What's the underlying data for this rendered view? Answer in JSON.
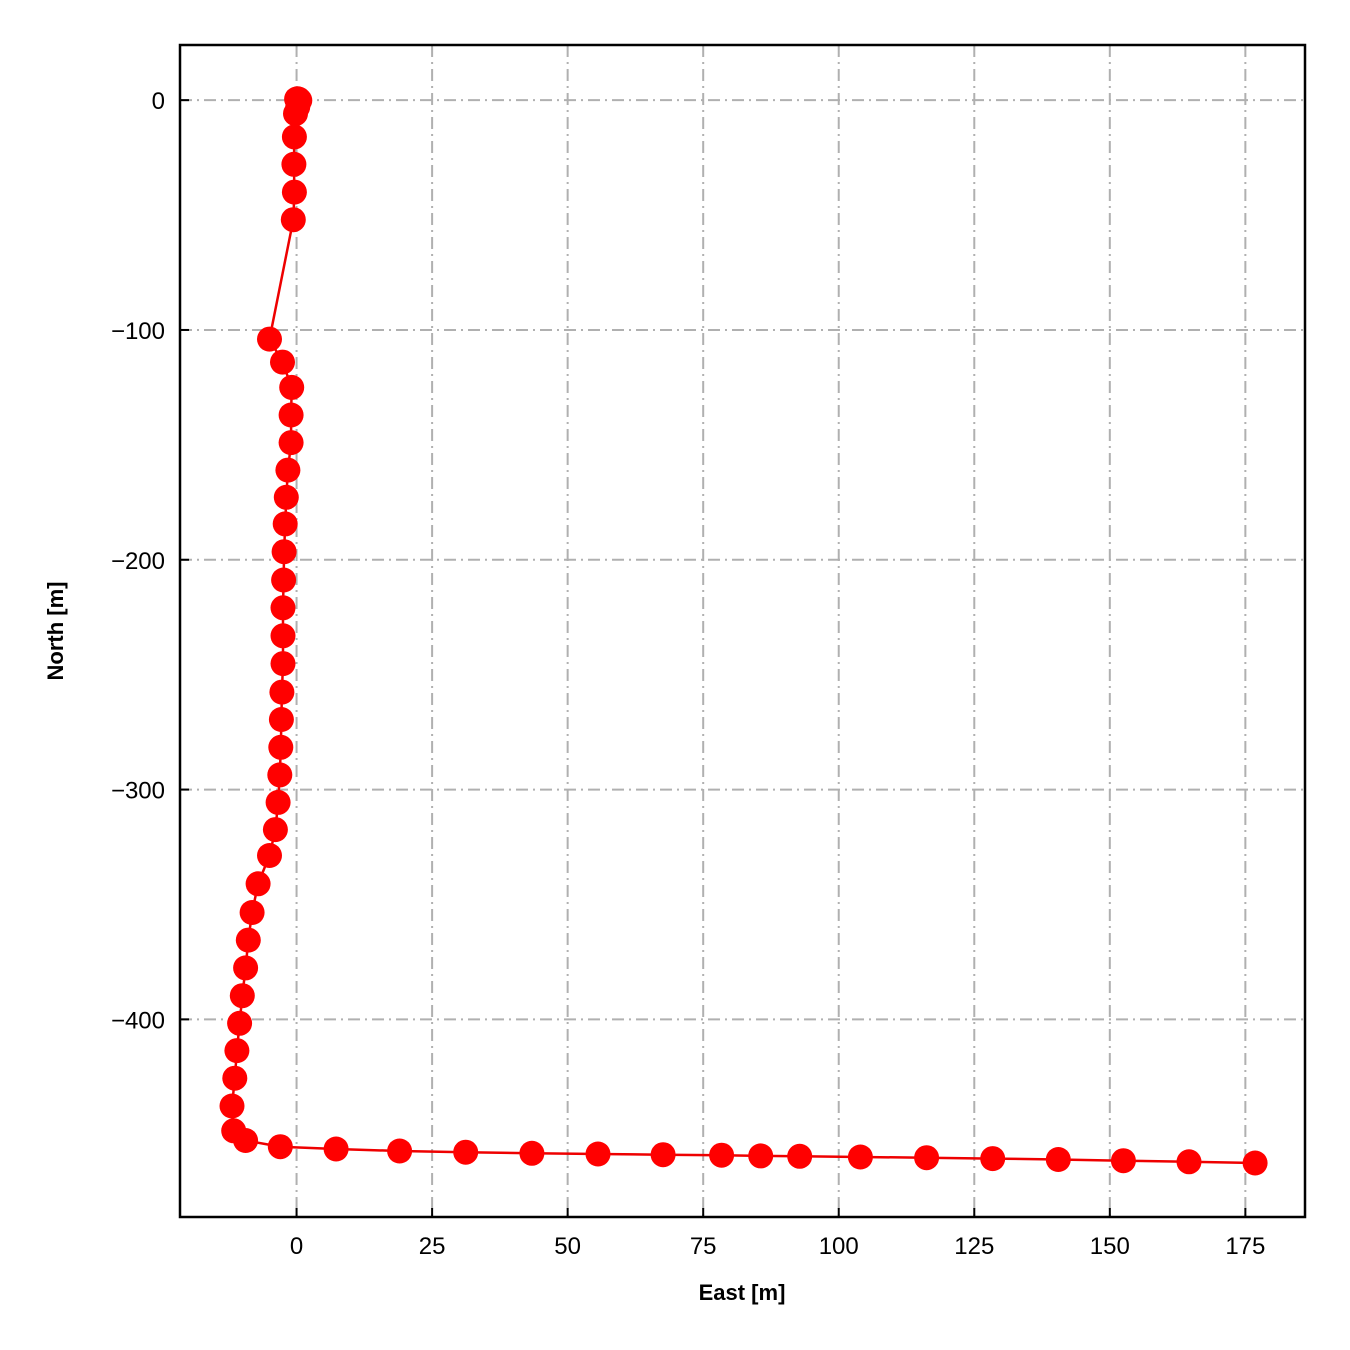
{
  "chart_data": {
    "type": "line",
    "title": "",
    "xlabel": "East [m]",
    "ylabel": "North [m]",
    "xlim": [
      -21.5,
      186
    ],
    "ylim": [
      -486,
      24
    ],
    "xticks": [
      0,
      25,
      50,
      75,
      100,
      125,
      150,
      175
    ],
    "yticks": [
      0,
      -100,
      -200,
      -300,
      -400
    ],
    "xtick_labels": [
      "0",
      "25",
      "50",
      "75",
      "100",
      "125",
      "150",
      "175"
    ],
    "ytick_labels": [
      "0",
      "−100",
      "−200",
      "−300",
      "−400"
    ],
    "grid": true,
    "line_color": "#ee0000",
    "marker_color": "#ff0000",
    "series": [
      {
        "x": [
          0.0,
          0.2,
          0.4,
          0.6,
          0.4,
          0.2,
          -0.2,
          -0.4,
          -0.5,
          -0.4,
          -0.6,
          -5.0,
          -2.6,
          -0.9,
          -1.0,
          -1.0,
          -1.6,
          -1.9,
          -2.1,
          -2.3,
          -2.4,
          -2.5,
          -2.5,
          -2.5,
          -2.7,
          -2.8,
          -2.9,
          -3.1,
          -3.4,
          -3.9,
          -5.0,
          -7.1,
          -8.2,
          -8.9,
          -9.4,
          -10.0,
          -10.5,
          -11.0,
          -11.4,
          -11.9,
          -11.6,
          -9.4,
          -3.0,
          7.3,
          19.0,
          31.2,
          43.4,
          55.6,
          67.6,
          78.4,
          85.6,
          92.8,
          104.0,
          116.2,
          128.4,
          140.5,
          152.5,
          164.6,
          176.8
        ],
        "y": [
          0.5,
          0.6,
          0.4,
          -0.1,
          -1.0,
          -3.0,
          -5.9,
          -16.0,
          -27.9,
          -40.0,
          -52.0,
          -104.0,
          -114.0,
          -125.0,
          -137.0,
          -149.0,
          -161.0,
          -172.8,
          -184.4,
          -196.5,
          -208.8,
          -220.9,
          -233.1,
          -245.2,
          -257.6,
          -269.5,
          -281.6,
          -293.6,
          -305.6,
          -317.4,
          -328.7,
          -341.0,
          -353.5,
          -365.5,
          -377.6,
          -389.7,
          -401.7,
          -413.6,
          -425.6,
          -437.7,
          -448.5,
          -452.7,
          -455.4,
          -456.4,
          -457.3,
          -457.8,
          -458.3,
          -458.6,
          -458.9,
          -459.1,
          -459.4,
          -459.6,
          -459.9,
          -460.2,
          -460.6,
          -461.0,
          -461.5,
          -462.0,
          -462.5
        ]
      }
    ]
  }
}
